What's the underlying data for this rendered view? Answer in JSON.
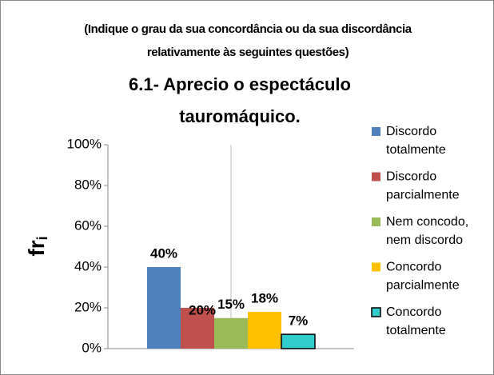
{
  "chart_data": {
    "type": "bar",
    "subtitle": "(Indique o grau da sua concordância ou da sua discordância relativamente às seguintes questões)",
    "title": "6.1- Aprecio o espectáculo tauromáquico.",
    "ylabel": "fr",
    "ylabel_subscript": "i",
    "categories": [
      null
    ],
    "series": [
      {
        "name": "Discordo totalmente",
        "color": "#4f81bd",
        "values": [
          40
        ],
        "value_labels": [
          "40%"
        ]
      },
      {
        "name": "Discordo parcialmente",
        "color": "#c0504d",
        "values": [
          20
        ],
        "value_labels": [
          "20%"
        ]
      },
      {
        "name": "Nem concodo, nem discordo",
        "color": "#9bbb59",
        "values": [
          15
        ],
        "value_labels": [
          "15%"
        ]
      },
      {
        "name": "Concordo parcialmente",
        "color": "#ffc000",
        "values": [
          18
        ],
        "value_labels": [
          "18%"
        ]
      },
      {
        "name": "Concordo totalmente",
        "color": "#33cccc",
        "values": [
          7
        ],
        "value_labels": [
          "7%"
        ]
      }
    ],
    "ylim": [
      0,
      100
    ],
    "yticks": [
      {
        "value": 0,
        "label": "0%"
      },
      {
        "value": 20,
        "label": "20%"
      },
      {
        "value": 40,
        "label": "40%"
      },
      {
        "value": 60,
        "label": "60%"
      },
      {
        "value": 80,
        "label": "80%"
      },
      {
        "value": 100,
        "label": "100%"
      }
    ],
    "legend": "right"
  }
}
